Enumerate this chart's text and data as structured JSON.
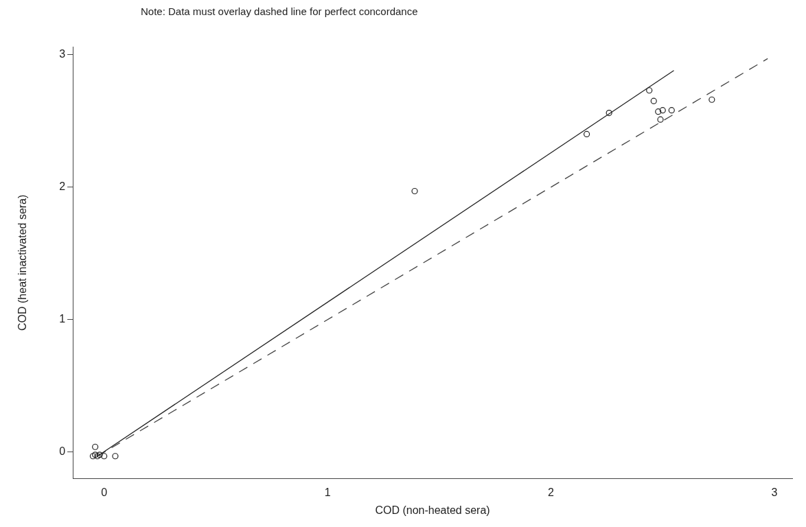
{
  "chart_data": {
    "type": "scatter",
    "xlabel": "COD (non-heated sera)",
    "ylabel": "COD (heat inactivated sera)",
    "annotations": [
      "Note: Data must overlay dashed line for perfect concordance"
    ],
    "xlim": [
      -0.14,
      3.08
    ],
    "ylim": [
      -0.2,
      3.06
    ],
    "xticks": [
      0,
      1,
      2,
      3
    ],
    "yticks": [
      0,
      1,
      2,
      3
    ],
    "grid": false,
    "legend": false,
    "series": [
      {
        "color": "#222222",
        "marker": "circle",
        "x": [
          -0.05,
          -0.04,
          -0.03,
          -0.02,
          0,
          -0.04,
          0.05,
          1.39,
          2.16,
          2.26,
          2.44,
          2.46,
          2.48,
          2.5,
          2.54,
          2.49,
          2.72
        ],
        "values": [
          -0.03,
          -0.02,
          -0.03,
          -0.02,
          -0.03,
          0.04,
          -0.03,
          1.97,
          2.4,
          2.56,
          2.73,
          2.65,
          2.57,
          2.58,
          2.58,
          2.51,
          2.66
        ]
      },
      {
        "type": "line",
        "color": "#222222",
        "line_style": "solid",
        "marker": "none",
        "x": [
          -0.03,
          2.55
        ],
        "values": [
          -0.03,
          2.88
        ]
      },
      {
        "type": "line",
        "color": "#444444",
        "line_style": "dashed",
        "marker": "none",
        "x": [
          -0.03,
          2.97
        ],
        "values": [
          -0.03,
          2.97
        ]
      }
    ]
  }
}
